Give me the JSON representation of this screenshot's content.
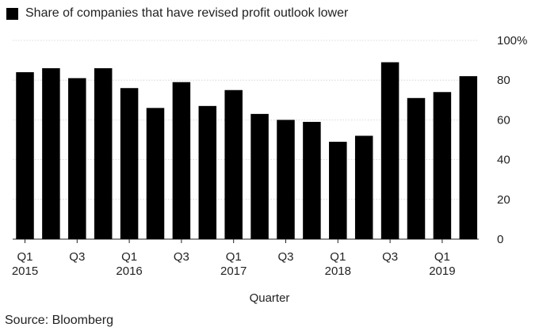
{
  "chart_data": {
    "type": "bar",
    "title": "",
    "legend": [
      {
        "label": "Share of companies that have revised profit outlook lower",
        "color": "#000000"
      }
    ],
    "xlabel": "Quarter",
    "ylabel": "",
    "ylim": [
      0,
      100
    ],
    "y_ticks": [
      "0",
      "20",
      "40",
      "60",
      "80",
      "100%"
    ],
    "y_tick_values": [
      0,
      20,
      40,
      60,
      80,
      100
    ],
    "categories": [
      "Q1 2015",
      "Q2 2015",
      "Q3 2015",
      "Q4 2015",
      "Q1 2016",
      "Q2 2016",
      "Q3 2016",
      "Q4 2016",
      "Q1 2017",
      "Q2 2017",
      "Q3 2017",
      "Q4 2017",
      "Q1 2018",
      "Q2 2018",
      "Q3 2018",
      "Q4 2018",
      "Q1 2019",
      "Q2 2019"
    ],
    "values": [
      84,
      86,
      81,
      86,
      76,
      66,
      79,
      67,
      75,
      63,
      60,
      59,
      49,
      52,
      89,
      71,
      74,
      82
    ],
    "x_tick_labels": [
      {
        "index": 0,
        "line1": "Q1",
        "line2": "2015"
      },
      {
        "index": 2,
        "line1": "Q3",
        "line2": ""
      },
      {
        "index": 4,
        "line1": "Q1",
        "line2": "2016"
      },
      {
        "index": 6,
        "line1": "Q3",
        "line2": ""
      },
      {
        "index": 8,
        "line1": "Q1",
        "line2": "2017"
      },
      {
        "index": 10,
        "line1": "Q3",
        "line2": ""
      },
      {
        "index": 12,
        "line1": "Q1",
        "line2": "2018"
      },
      {
        "index": 14,
        "line1": "Q3",
        "line2": ""
      },
      {
        "index": 16,
        "line1": "Q1",
        "line2": "2019"
      }
    ],
    "grid": true,
    "legend_position": "top-left",
    "bar_color": "#000000"
  },
  "source": "Source: Bloomberg"
}
